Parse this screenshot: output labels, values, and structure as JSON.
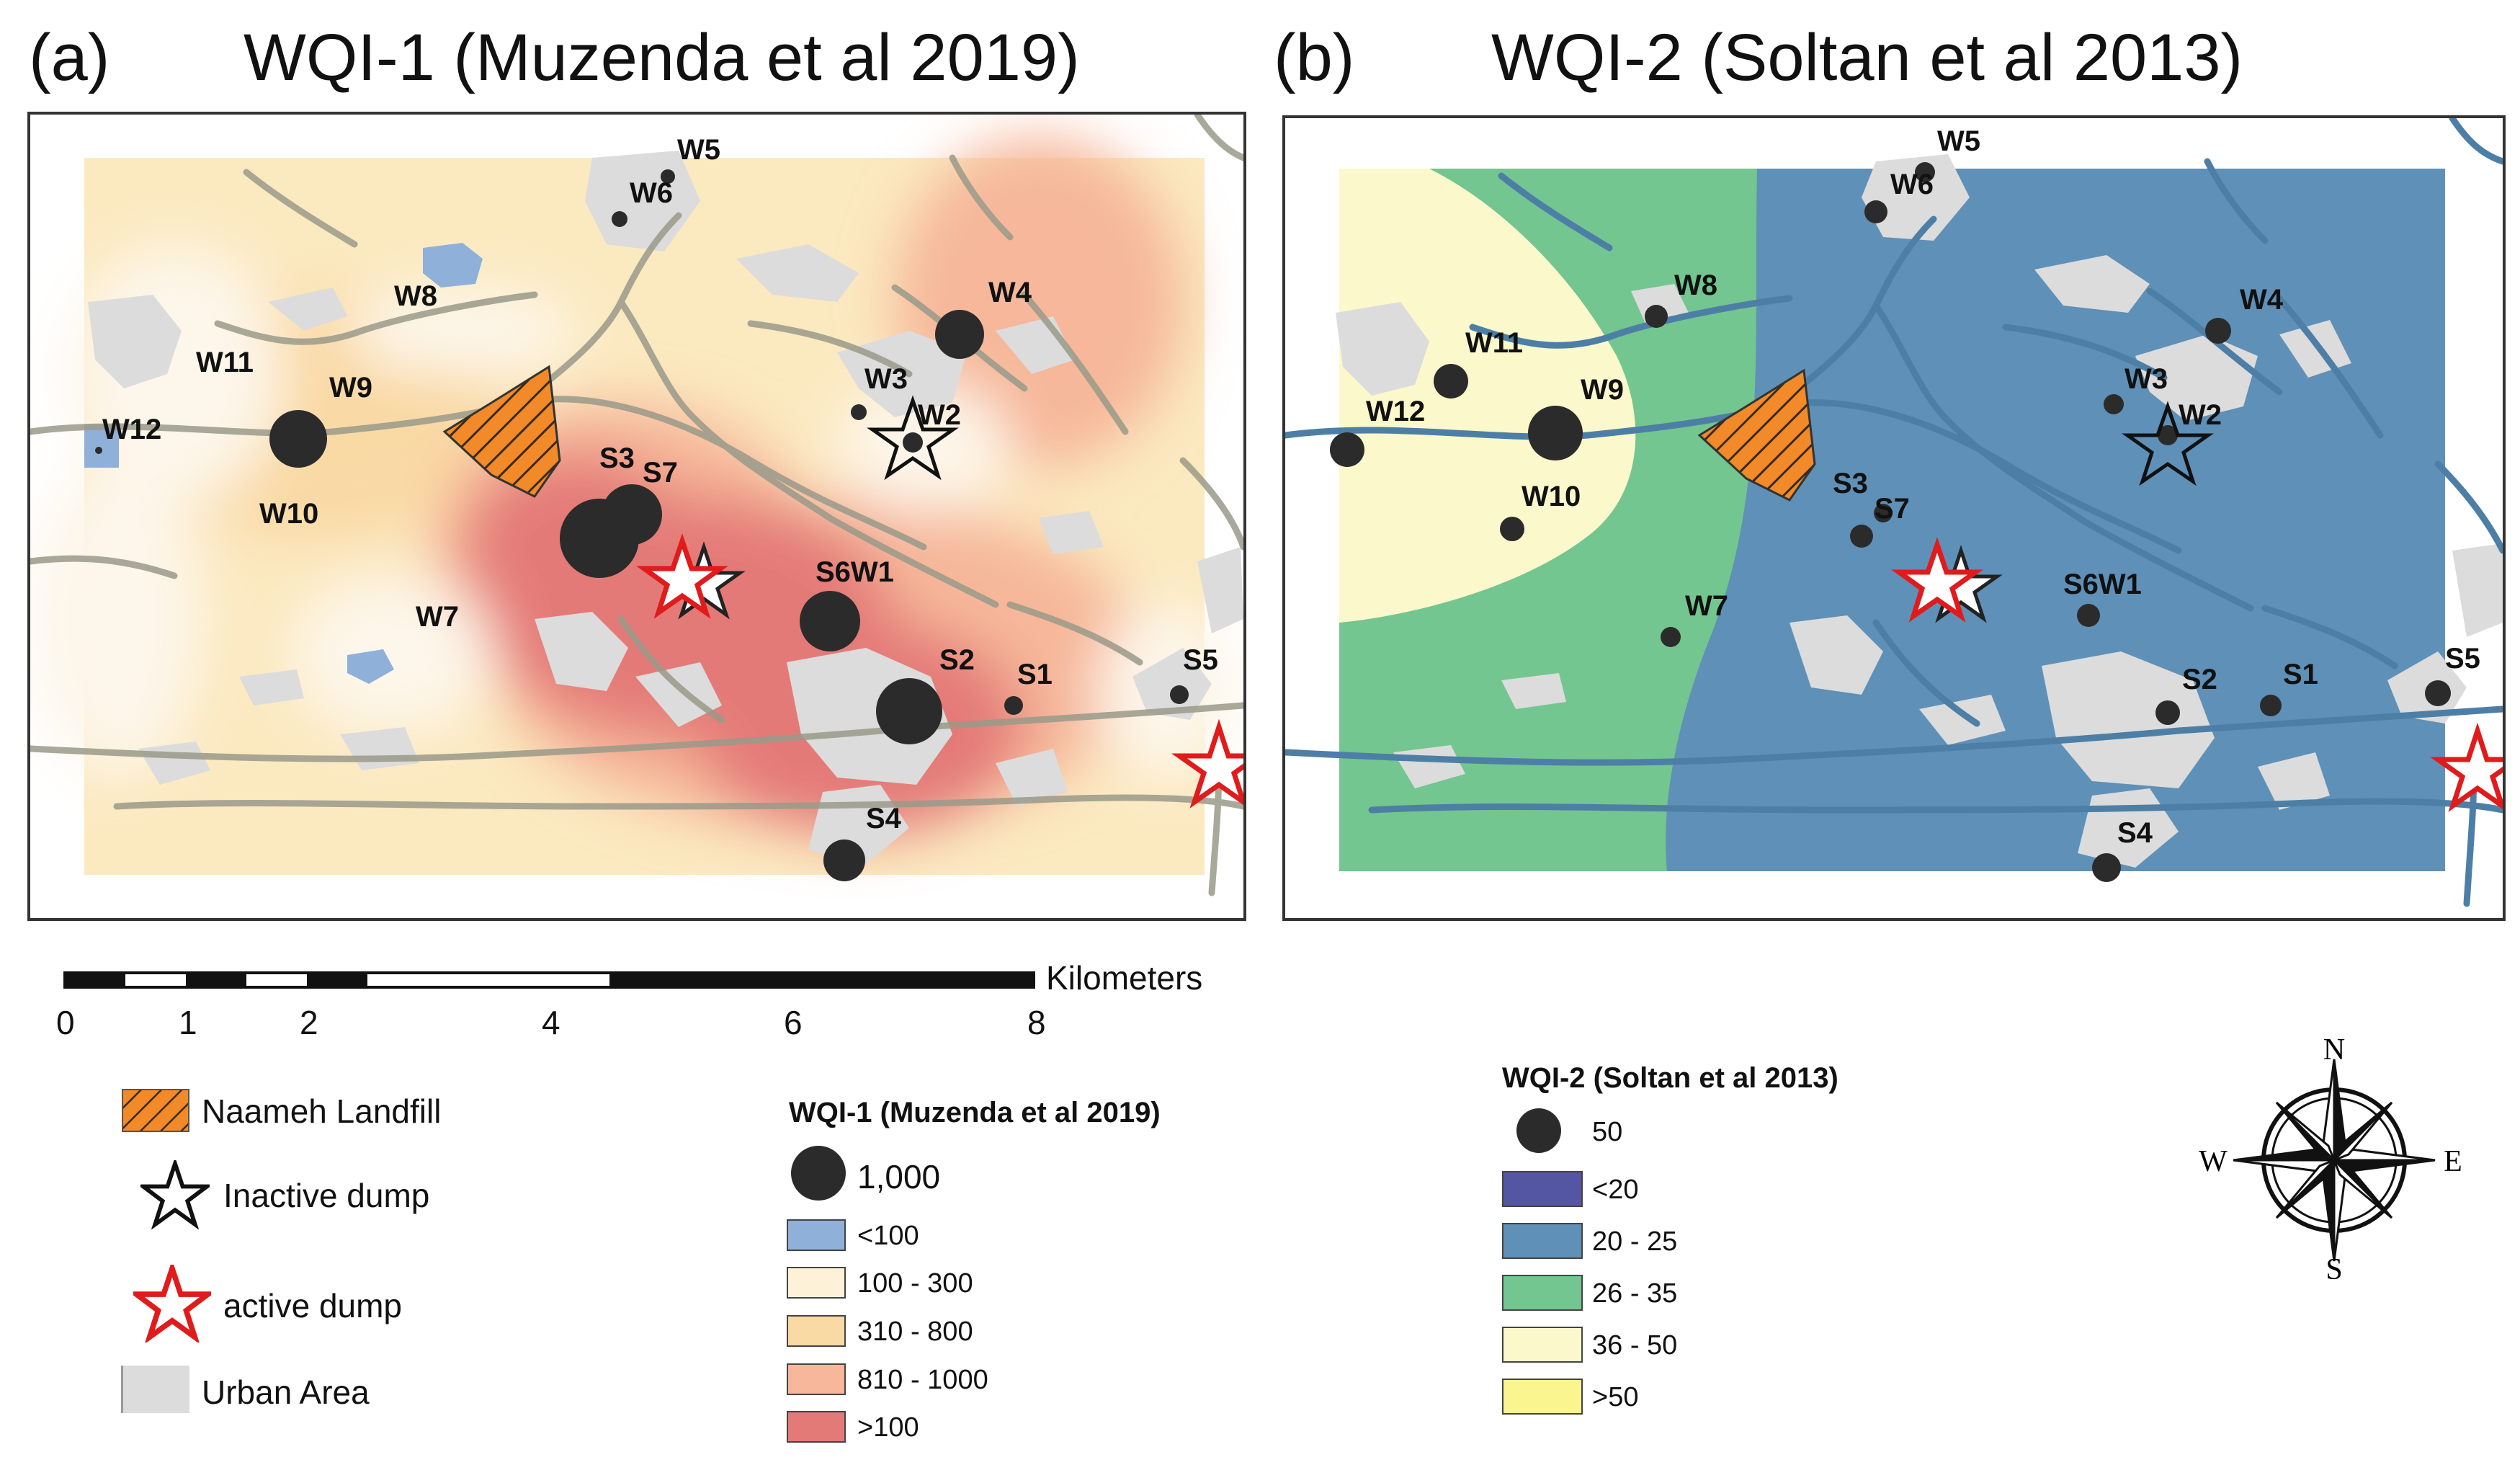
{
  "panels": {
    "a": {
      "label": "(a)",
      "title": "WQI-1 (Muzenda et al 2019)",
      "stations": [
        "W5",
        "W6",
        "W8",
        "W4",
        "W11",
        "W9",
        "W3",
        "W2",
        "W12",
        "S3",
        "S7",
        "W10",
        "S6W1",
        "W7",
        "S2",
        "S1",
        "S5",
        "S4"
      ]
    },
    "b": {
      "label": "(b)",
      "title": "WQI-2 (Soltan et al 2013)",
      "stations": [
        "W5",
        "W6",
        "W8",
        "W4",
        "W11",
        "W9",
        "W3",
        "W2",
        "W12",
        "W10",
        "S3",
        "S7",
        "S6W1",
        "W7",
        "S2",
        "S1",
        "S5",
        "S4"
      ]
    }
  },
  "scale": {
    "unit": "Kilometers",
    "ticks": [
      "0",
      "1",
      "2",
      "4",
      "6",
      "8"
    ]
  },
  "legend_symbols": {
    "landfill": "Naameh Landfill",
    "inactive": "Inactive dump",
    "active": "active dump",
    "urban": "Urban Area"
  },
  "legend_wqi1": {
    "title": "WQI-1 (Muzenda et al 2019)",
    "size_label": "1,000",
    "classes": [
      {
        "label": "<100",
        "color": "#8fb0d8"
      },
      {
        "label": "100 - 300",
        "color": "#fdf1d8"
      },
      {
        "label": "310 - 800",
        "color": "#f9d9a4"
      },
      {
        "label": "810 - 1000",
        "color": "#f6b79a"
      },
      {
        "label": ">100",
        "color": "#e47a78"
      }
    ]
  },
  "legend_wqi2": {
    "title": "WQI-2 (Soltan et al 2013)",
    "size_label": "50",
    "classes": [
      {
        "label": "<20",
        "color": "#5455a3"
      },
      {
        "label": "20 - 25",
        "color": "#5f90b7"
      },
      {
        "label": "26 - 35",
        "color": "#73c68f"
      },
      {
        "label": "36 - 50",
        "color": "#fbf8cc"
      },
      {
        "label": ">50",
        "color": "#fbf58f"
      }
    ]
  },
  "compass": {
    "n": "N",
    "s": "S",
    "e": "E",
    "w": "W"
  }
}
